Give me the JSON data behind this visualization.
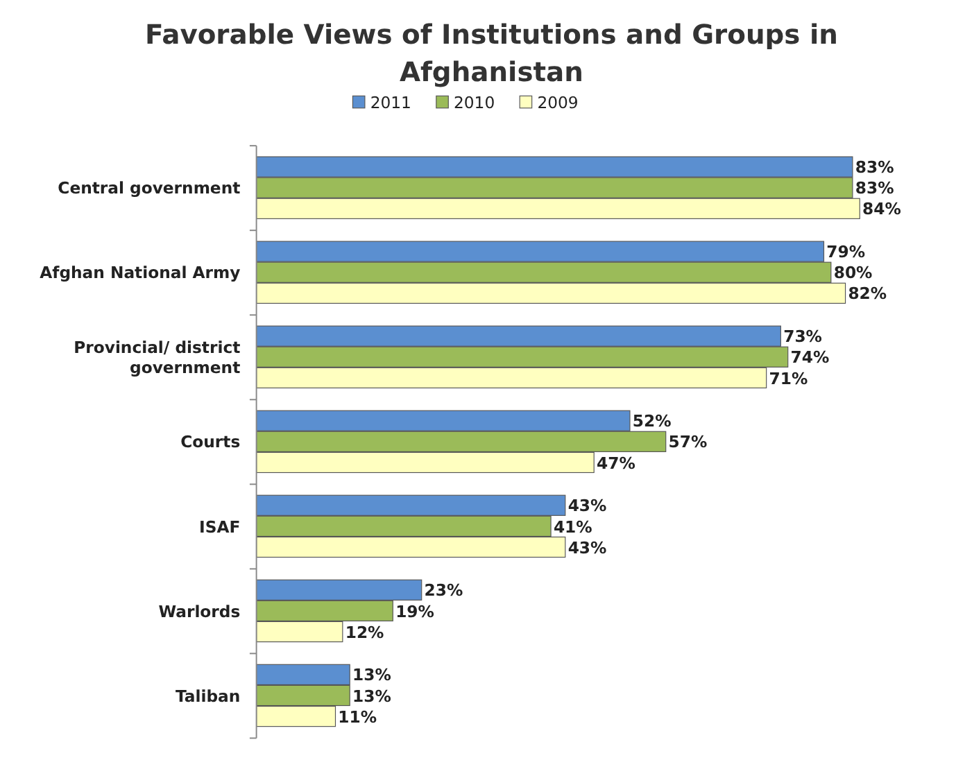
{
  "chart_data": {
    "type": "bar",
    "orientation": "horizontal",
    "title": "Favorable Views of Institutions and Groups in Afghanistan",
    "categories": [
      "Central government",
      "Afghan National Army",
      "Provincial/ district government",
      "Courts",
      "ISAF",
      "Warlords",
      "Taliban"
    ],
    "series": [
      {
        "name": "2011",
        "color": "#5b8fd0",
        "values": [
          83,
          79,
          73,
          52,
          43,
          23,
          13
        ],
        "value_labels": [
          "83%",
          "79%",
          "73%",
          "52%",
          "43%",
          "23%",
          "13%"
        ]
      },
      {
        "name": "2010",
        "color": "#9bbb59",
        "values": [
          83,
          80,
          74,
          57,
          41,
          19,
          13
        ],
        "value_labels": [
          "83%",
          "80%",
          "74%",
          "57%",
          "41%",
          "19%",
          "13%"
        ]
      },
      {
        "name": "2009",
        "color": "#ffffc0",
        "values": [
          84,
          82,
          71,
          47,
          43,
          12,
          11
        ],
        "value_labels": [
          "84%",
          "82%",
          "71%",
          "47%",
          "43%",
          "12%",
          "11%"
        ]
      }
    ],
    "legend": "top",
    "grid": false
  }
}
